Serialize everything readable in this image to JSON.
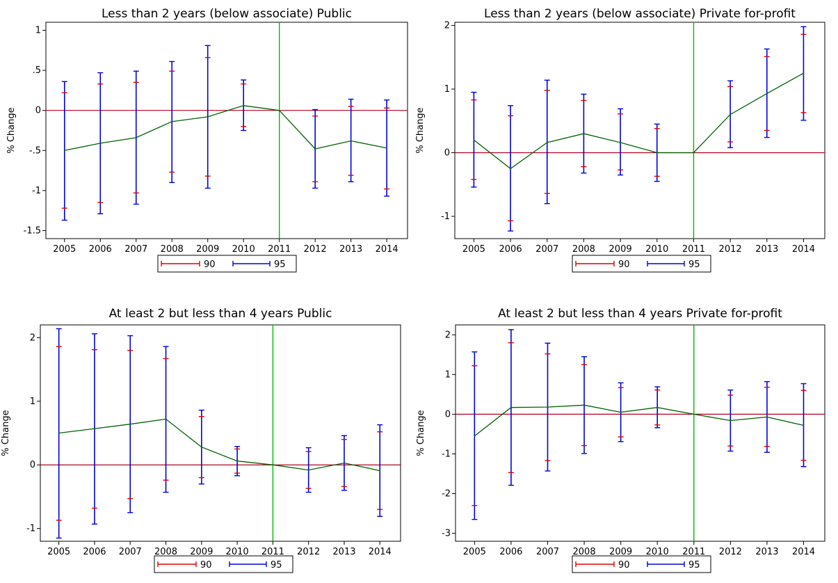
{
  "colors": {
    "ci90": "#e00000",
    "ci95": "#0000e0",
    "estimate": "#006000",
    "zero_line": "#b00020",
    "ref_line": "#00bb00"
  },
  "chart_data": [
    {
      "type": "line",
      "title": "Less than 2 years (below associate) Public",
      "ylabel": "% Change",
      "x": [
        "2005",
        "2006",
        "2007",
        "2008",
        "2009",
        "2010",
        "2011",
        "2012",
        "2013",
        "2014"
      ],
      "ylim": [
        -1.6,
        1.1
      ],
      "yticks": [
        1,
        0.5,
        0,
        -0.5,
        -1,
        -1.5
      ],
      "ytick_labels": [
        "1",
        ".5",
        "0",
        "-.5",
        "-1",
        "-1.5"
      ],
      "ref_x": "2011",
      "estimate": [
        -0.5,
        -0.41,
        -0.34,
        -0.14,
        -0.08,
        0.06,
        0,
        -0.48,
        -0.38,
        -0.47
      ],
      "ci90_lo": [
        -1.22,
        -1.15,
        -1.03,
        -0.77,
        -0.82,
        -0.2,
        0,
        -0.89,
        -0.81,
        -0.98
      ],
      "ci90_hi": [
        0.22,
        0.33,
        0.35,
        0.49,
        0.66,
        0.33,
        0,
        -0.07,
        0.05,
        0.03
      ],
      "ci95_lo": [
        -1.37,
        -1.29,
        -1.17,
        -0.9,
        -0.97,
        -0.25,
        0,
        -0.97,
        -0.89,
        -1.07
      ],
      "ci95_hi": [
        0.36,
        0.47,
        0.49,
        0.61,
        0.81,
        0.38,
        0,
        0.01,
        0.14,
        0.13
      ],
      "legend": [
        "90",
        "95"
      ]
    },
    {
      "type": "line",
      "title": "Less than 2 years (below associate) Private for-profit",
      "ylabel": "% Change",
      "x": [
        "2005",
        "2006",
        "2007",
        "2008",
        "2009",
        "2010",
        "2011",
        "2012",
        "2013",
        "2014"
      ],
      "ylim": [
        -1.35,
        2.05
      ],
      "yticks": [
        2,
        1,
        0,
        -1
      ],
      "ytick_labels": [
        "2",
        "1",
        "0",
        "-1"
      ],
      "ref_x": "2011",
      "estimate": [
        0.2,
        -0.25,
        0.16,
        0.3,
        0.16,
        0.0,
        0,
        0.6,
        0.93,
        1.25
      ],
      "ci90_lo": [
        -0.42,
        -1.07,
        -0.64,
        -0.22,
        -0.27,
        -0.37,
        0,
        0.17,
        0.35,
        0.63
      ],
      "ci90_hi": [
        0.83,
        0.58,
        0.98,
        0.82,
        0.61,
        0.38,
        0,
        1.04,
        1.51,
        1.86
      ],
      "ci95_lo": [
        -0.54,
        -1.23,
        -0.8,
        -0.32,
        -0.35,
        -0.45,
        0,
        0.08,
        0.24,
        0.51
      ],
      "ci95_hi": [
        0.95,
        0.74,
        1.14,
        0.92,
        0.69,
        0.45,
        0,
        1.13,
        1.63,
        1.98
      ],
      "legend": [
        "90",
        "95"
      ]
    },
    {
      "type": "line",
      "title": "At least 2 but less than 4 years Public",
      "ylabel": "% Change",
      "x": [
        "2005",
        "2006",
        "2007",
        "2008",
        "2009",
        "2010",
        "2011",
        "2012",
        "2013",
        "2014"
      ],
      "ylim": [
        -1.2,
        2.2
      ],
      "yticks": [
        2,
        1,
        0,
        -1
      ],
      "ytick_labels": [
        "2",
        "1",
        "0",
        "-1"
      ],
      "ref_x": "2011",
      "estimate": [
        0.5,
        0.57,
        0.64,
        0.72,
        0.28,
        0.06,
        0,
        -0.08,
        0.03,
        -0.09
      ],
      "ci90_lo": [
        -0.87,
        -0.68,
        -0.53,
        -0.24,
        -0.2,
        -0.13,
        0,
        -0.37,
        -0.34,
        -0.7
      ],
      "ci90_hi": [
        1.86,
        1.81,
        1.8,
        1.67,
        0.76,
        0.25,
        0,
        0.21,
        0.4,
        0.52
      ],
      "ci95_lo": [
        -1.15,
        -0.93,
        -0.75,
        -0.43,
        -0.3,
        -0.17,
        0,
        -0.43,
        -0.4,
        -0.81
      ],
      "ci95_hi": [
        2.14,
        2.06,
        2.03,
        1.86,
        0.86,
        0.29,
        0,
        0.27,
        0.46,
        0.63
      ],
      "legend": [
        "90",
        "95"
      ]
    },
    {
      "type": "line",
      "title": "At least 2 but less than 4 years Private for-profit",
      "ylabel": "% Change",
      "x": [
        "2005",
        "2006",
        "2007",
        "2008",
        "2009",
        "2010",
        "2011",
        "2012",
        "2013",
        "2014"
      ],
      "ylim": [
        -3.2,
        2.25
      ],
      "yticks": [
        2,
        1,
        0,
        -1,
        -2,
        -3
      ],
      "ytick_labels": [
        "2",
        "1",
        "0",
        "-1",
        "-2",
        "-3"
      ],
      "ref_x": "2011",
      "estimate": [
        -0.55,
        0.17,
        0.18,
        0.23,
        0.05,
        0.17,
        0,
        -0.16,
        -0.07,
        -0.28
      ],
      "ci90_lo": [
        -2.3,
        -1.47,
        -1.17,
        -0.79,
        -0.57,
        -0.27,
        0,
        -0.8,
        -0.81,
        -1.16
      ],
      "ci90_hi": [
        1.22,
        1.8,
        1.52,
        1.25,
        0.67,
        0.61,
        0,
        0.48,
        0.68,
        0.6
      ],
      "ci95_lo": [
        -2.65,
        -1.79,
        -1.43,
        -0.99,
        -0.69,
        -0.34,
        0,
        -0.93,
        -0.96,
        -1.32
      ],
      "ci95_hi": [
        1.57,
        2.13,
        1.79,
        1.45,
        0.79,
        0.69,
        0,
        0.61,
        0.82,
        0.77
      ],
      "legend": [
        "90",
        "95"
      ]
    }
  ]
}
